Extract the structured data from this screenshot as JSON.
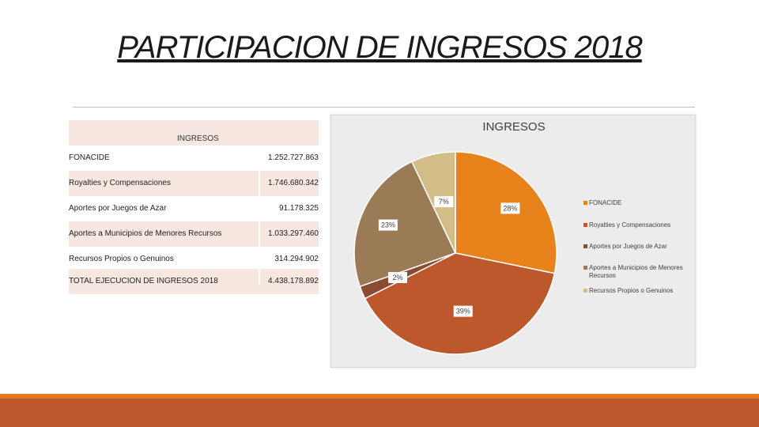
{
  "slide": {
    "title": "PARTICIPACION DE INGRESOS 2018"
  },
  "table": {
    "header": "INGRESOS",
    "rows": [
      {
        "label": "FONACIDE",
        "value": "1.252.727.863"
      },
      {
        "label": "Royalties y Compensaciones",
        "value": "1.746.680.342"
      },
      {
        "label": "Aportes por Juegos de Azar",
        "value": "91.178.325"
      },
      {
        "label": "Aportes a Municipios de Menores Recursos",
        "value": "1.033.297.460"
      },
      {
        "label": "Recursos Propios o Genuinos",
        "value": "314.294.902"
      },
      {
        "label": "TOTAL EJECUCION DE INGRESOS 2018",
        "value": "4.438.178.892"
      }
    ]
  },
  "chart_data": {
    "type": "pie",
    "title": "INGRESOS",
    "legend_position": "right",
    "categories": [
      "FONACIDE",
      "Royalties y Compensaciones",
      "Aportes por Juegos de Azar",
      "Aportes a Municipios de Menores Recursos",
      "Recursos Propios o Genuinos"
    ],
    "values": [
      1252727863,
      1746680342,
      91178325,
      1033297460,
      314294902
    ],
    "data_labels": [
      "28%",
      "39%",
      "2%",
      "23%",
      "7%"
    ],
    "colors": [
      "#e8821b",
      "#bd582c",
      "#8b4a32",
      "#9a7b55",
      "#d2bd87"
    ]
  }
}
